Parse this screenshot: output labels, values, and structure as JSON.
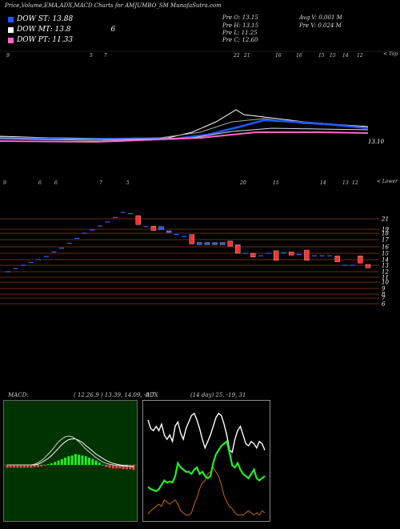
{
  "header": "Price,Volume,EMA,ADX,MACD Charts for AMJUMBO_SM MunafaSutra.com",
  "dow": [
    {
      "label": "DOW ST: 13.88",
      "color": "#2255ff"
    },
    {
      "label": "DOW MT: 13.8",
      "color": "#ffffff"
    },
    {
      "label": "DOW PT: 11.33",
      "color": "#ff66cc"
    }
  ],
  "dow_extra": "6",
  "stats_left": [
    "Pre   O: 13.15",
    "Pre   H: 13.15",
    "Pre   L: 11.25",
    "Pre   C: 12.60"
  ],
  "stats_right": [
    "Avg V: 0.001 M",
    "Pre   V: 0.024  M"
  ],
  "top_day_labels": [
    "9",
    "5",
    "7",
    "22",
    "21",
    "16",
    "16",
    "15",
    "15",
    "14",
    "12"
  ],
  "top_corner": "< Top",
  "ema_price_label": "13.10",
  "mid_day_labels": [
    "9",
    "6",
    "6",
    "7",
    "5",
    "20",
    "15",
    "14",
    "13",
    "12"
  ],
  "mid_corner": "< Lower",
  "chart_data": {
    "type": "candlestick",
    "price_levels": [
      21,
      19,
      18,
      17,
      16,
      15,
      14,
      13,
      12,
      11,
      10,
      9,
      8,
      7,
      6
    ],
    "candles": [
      {
        "o": 12.0,
        "c": 12.0
      },
      {
        "o": 12.5,
        "c": 12.5
      },
      {
        "o": 13.0,
        "c": 13.0
      },
      {
        "o": 13.5,
        "c": 13.5
      },
      {
        "o": 14.0,
        "c": 14.0
      },
      {
        "o": 14.5,
        "c": 14.5
      },
      {
        "o": 15.2,
        "c": 15.2
      },
      {
        "o": 15.8,
        "c": 15.8
      },
      {
        "o": 16.5,
        "c": 16.5
      },
      {
        "o": 17.2,
        "c": 17.2
      },
      {
        "o": 18.0,
        "c": 18.0
      },
      {
        "o": 18.8,
        "c": 18.8
      },
      {
        "o": 19.6,
        "c": 19.6
      },
      {
        "o": 20.4,
        "c": 20.4
      },
      {
        "o": 21.2,
        "c": 21.2
      },
      {
        "o": 22.0,
        "c": 22.0
      },
      {
        "o": 21.8,
        "c": 21.8
      },
      {
        "o": 21.5,
        "c": 19.9
      },
      {
        "o": 19.5,
        "c": 19.5
      },
      {
        "o": 19.6,
        "c": 18.7
      },
      {
        "o": 18.9,
        "c": 19.5
      },
      {
        "o": 18.5,
        "c": 18.6
      },
      {
        "o": 17.8,
        "c": 17.8
      },
      {
        "o": 17.5,
        "c": 17.5
      },
      {
        "o": 17.8,
        "c": 16.4
      },
      {
        "o": 16.3,
        "c": 16.6
      },
      {
        "o": 16.3,
        "c": 16.6
      },
      {
        "o": 16.3,
        "c": 16.6
      },
      {
        "o": 16.3,
        "c": 16.6
      },
      {
        "o": 16.8,
        "c": 16.1
      },
      {
        "o": 16.3,
        "c": 15.0
      },
      {
        "o": 15.0,
        "c": 15.0
      },
      {
        "o": 15.0,
        "c": 14.4
      },
      {
        "o": 14.6,
        "c": 14.6
      },
      {
        "o": 15.0,
        "c": 15.0
      },
      {
        "o": 15.4,
        "c": 13.9
      },
      {
        "o": 15.1,
        "c": 15.1
      },
      {
        "o": 15.2,
        "c": 14.7
      },
      {
        "o": 14.8,
        "c": 14.8
      },
      {
        "o": 15.5,
        "c": 13.9
      },
      {
        "o": 14.6,
        "c": 14.6
      },
      {
        "o": 14.6,
        "c": 14.6
      },
      {
        "o": 14.6,
        "c": 14.6
      },
      {
        "o": 14.6,
        "c": 13.6
      },
      {
        "o": 13.0,
        "c": 13.0
      },
      {
        "o": 13.0,
        "c": 13.0
      },
      {
        "o": 14.6,
        "c": 13.4
      },
      {
        "o": 13.15,
        "c": 12.6
      }
    ],
    "macd_label": "MACD:",
    "macd_params": "( 12,26,9 ) 13.39,  14.09,  -0.7",
    "macd_hist": [
      -0.4,
      -0.4,
      -0.4,
      -0.4,
      -0.4,
      -0.4,
      -0.4,
      -0.4,
      -0.3,
      -0.3,
      -0.2,
      -0.1,
      0.1,
      0.2,
      0.4,
      0.6,
      0.8,
      1.0,
      1.2,
      1.3,
      1.5,
      1.4,
      1.3,
      1.2,
      1.0,
      0.8,
      0.6,
      0.3,
      -0.1,
      -0.3,
      -0.4,
      -0.5,
      -0.5,
      -0.5,
      -0.6,
      -0.6,
      -0.6,
      -0.7
    ],
    "macd_line": [
      0,
      0,
      0,
      0,
      0,
      0,
      0,
      0,
      0.1,
      0.3,
      0.6,
      1.0,
      1.5,
      2.0,
      2.6,
      3.2,
      3.6,
      3.9,
      4.0,
      3.9,
      3.6,
      3.2,
      2.7,
      2.2,
      1.8,
      1.4,
      1.0,
      0.7,
      0.4,
      0.2,
      0.1,
      0,
      -0.1,
      -0.1,
      -0.2,
      -0.2,
      -0.2,
      -0.3
    ],
    "macd_signal": [
      0,
      0,
      0,
      0,
      0,
      0,
      0,
      0,
      0,
      0.1,
      0.3,
      0.6,
      0.9,
      1.3,
      1.8,
      2.3,
      2.8,
      3.2,
      3.5,
      3.6,
      3.6,
      3.4,
      3.1,
      2.7,
      2.3,
      1.9,
      1.5,
      1.2,
      0.9,
      0.6,
      0.4,
      0.2,
      0.1,
      0,
      -0.1,
      -0.1,
      -0.2,
      -0.2
    ],
    "adx_label": "ADX",
    "adx_params": "(14  day) 25,  -19,  31",
    "plus_di": [
      30,
      28,
      27,
      26,
      28,
      32,
      36,
      34,
      35,
      34,
      40,
      52,
      48,
      46,
      44,
      44,
      42,
      46,
      48,
      42,
      44,
      40,
      38,
      40,
      52,
      60,
      64,
      68,
      70,
      72,
      62,
      50,
      48,
      52,
      46,
      42,
      40,
      38,
      42,
      46,
      38,
      36,
      38,
      40
    ],
    "minus_di": [
      5,
      8,
      10,
      12,
      14,
      12,
      18,
      16,
      14,
      16,
      18,
      14,
      8,
      6,
      4,
      4,
      6,
      14,
      20,
      28,
      34,
      36,
      42,
      44,
      48,
      44,
      40,
      32,
      22,
      16,
      12,
      10,
      6,
      4,
      4,
      4,
      6,
      8,
      6,
      4,
      6,
      4,
      8,
      6
    ],
    "adx": [
      92,
      84,
      82,
      86,
      82,
      88,
      78,
      74,
      78,
      72,
      86,
      90,
      80,
      74,
      84,
      90,
      96,
      98,
      92,
      84,
      74,
      66,
      72,
      78,
      86,
      94,
      98,
      96,
      88,
      78,
      64,
      62,
      74,
      82,
      86,
      78,
      70,
      68,
      72,
      70,
      66,
      72,
      70,
      64
    ]
  }
}
